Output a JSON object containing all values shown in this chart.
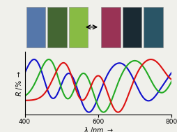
{
  "x_min": 400,
  "x_max": 800,
  "xticks": [
    400,
    600,
    800
  ],
  "background_color": "#f0f0eb",
  "blue_color": "#1010cc",
  "green_color": "#22aa22",
  "red_color": "#dd1111",
  "linewidth": 1.5,
  "blue_shift": 0,
  "green_shift": 40,
  "red_shift": 80,
  "inset_left_colors": [
    "#5577aa",
    "#446633",
    "#88bb44"
  ],
  "inset_right_colors": [
    "#993355",
    "#1a2a33",
    "#2a5566"
  ]
}
